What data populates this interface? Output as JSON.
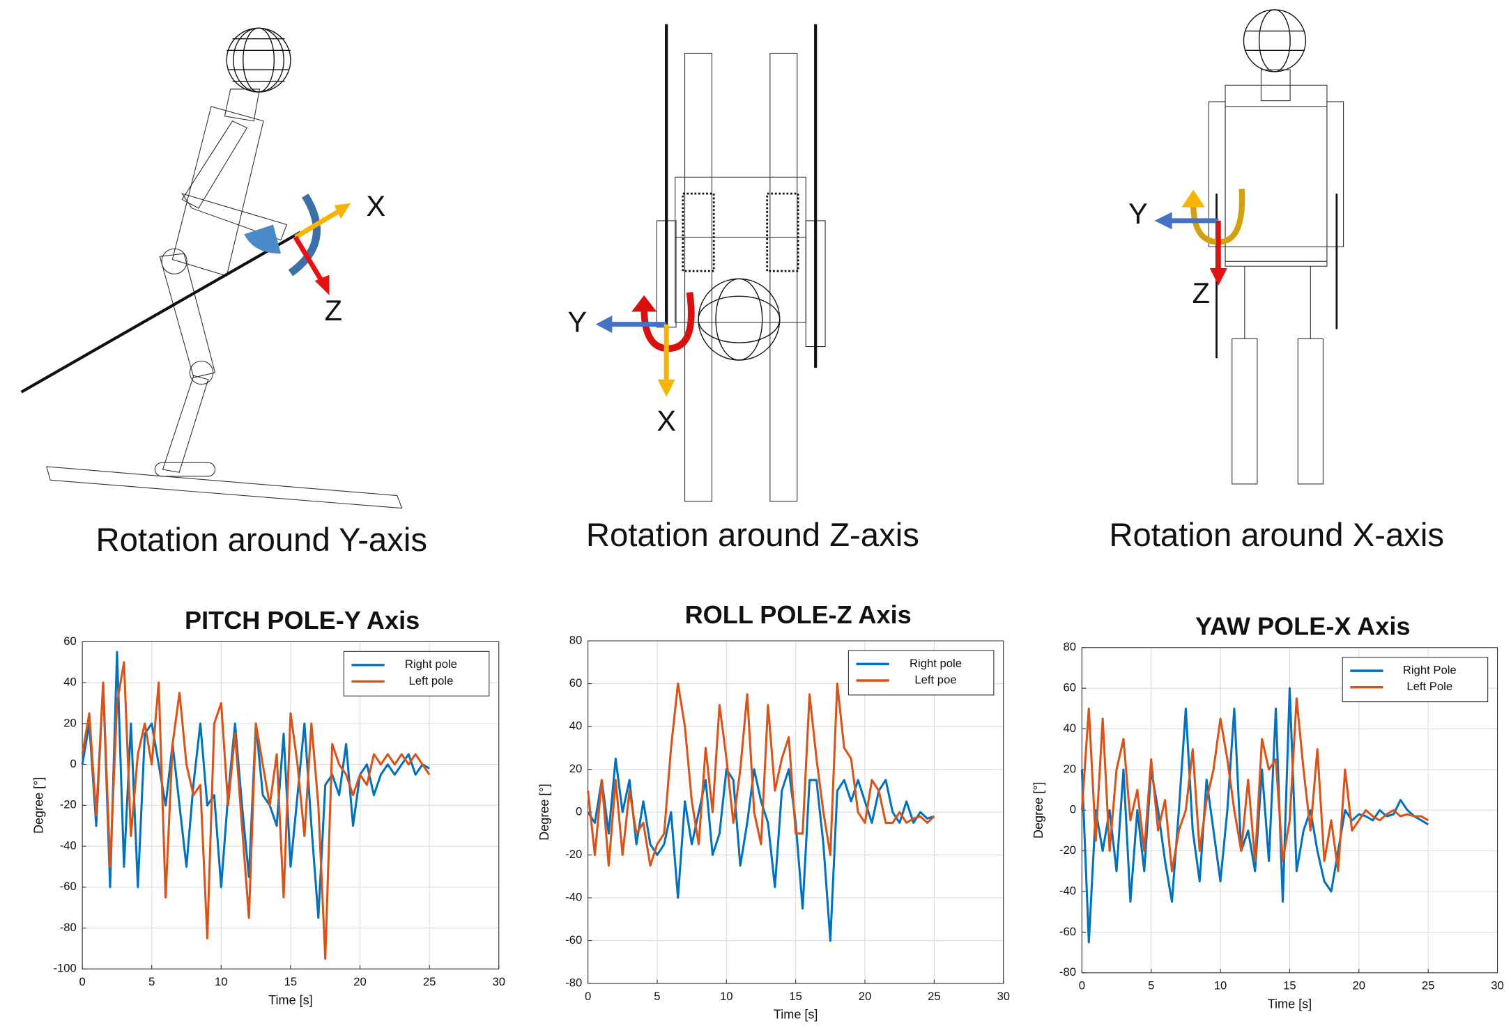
{
  "diagrams": [
    {
      "caption": "Rotation around Y-axis",
      "axes": [
        "X",
        "Z"
      ]
    },
    {
      "caption": "Rotation around Z-axis",
      "axes": [
        "Y",
        "X"
      ]
    },
    {
      "caption": "Rotation around X-axis",
      "axes": [
        "Y",
        "Z"
      ]
    }
  ],
  "chart_data": [
    {
      "type": "line",
      "title": "PITCH POLE-Y Axis",
      "xlabel": "Time [s]",
      "ylabel": "Degree [°]",
      "xlim": [
        0,
        30
      ],
      "xticks": [
        0,
        5,
        10,
        15,
        20,
        25,
        30
      ],
      "ylim": [
        -100,
        60
      ],
      "yticks": [
        -100,
        -80,
        -60,
        -40,
        -20,
        0,
        20,
        40,
        60
      ],
      "grid": true,
      "legend": "upper right",
      "x": [
        0,
        0.5,
        1,
        1.5,
        2,
        2.5,
        3,
        3.5,
        4,
        4.5,
        5,
        5.5,
        6,
        6.5,
        7,
        7.5,
        8,
        8.5,
        9,
        9.5,
        10,
        10.5,
        11,
        11.5,
        12,
        12.5,
        13,
        13.5,
        14,
        14.5,
        15,
        15.5,
        16,
        16.5,
        17,
        17.5,
        18,
        18.5,
        19,
        19.5,
        20,
        20.5,
        21,
        21.5,
        22,
        22.5,
        23,
        23.5,
        24,
        24.5,
        25
      ],
      "series": [
        {
          "name": "Right pole",
          "color": "#0072bd",
          "values": [
            0,
            20,
            -30,
            40,
            -60,
            55,
            -50,
            20,
            -60,
            15,
            20,
            0,
            -20,
            10,
            -20,
            -50,
            -10,
            20,
            -20,
            -15,
            -60,
            -15,
            20,
            -20,
            -55,
            20,
            -15,
            -20,
            -30,
            15,
            -50,
            -15,
            20,
            -30,
            -75,
            -10,
            -5,
            -15,
            10,
            -30,
            -5,
            0,
            -15,
            -5,
            0,
            -5,
            0,
            5,
            -5,
            0,
            -2
          ]
        },
        {
          "name": "Left pole",
          "color": "#d95319",
          "values": [
            5,
            25,
            -25,
            40,
            -50,
            30,
            50,
            -35,
            5,
            20,
            0,
            40,
            -65,
            10,
            35,
            0,
            -15,
            -10,
            -85,
            20,
            30,
            -20,
            15,
            -30,
            -75,
            20,
            0,
            -20,
            5,
            -65,
            25,
            0,
            -35,
            20,
            -20,
            -95,
            10,
            0,
            -5,
            -15,
            -5,
            -10,
            5,
            0,
            5,
            0,
            5,
            0,
            5,
            0,
            -5
          ]
        }
      ]
    },
    {
      "type": "line",
      "title": "ROLL POLE-Z Axis",
      "xlabel": "Time [s]",
      "ylabel": "Degree [°]",
      "xlim": [
        0,
        30
      ],
      "xticks": [
        0,
        5,
        10,
        15,
        20,
        25,
        30
      ],
      "ylim": [
        -80,
        80
      ],
      "yticks": [
        -80,
        -60,
        -40,
        -20,
        0,
        20,
        40,
        60,
        80
      ],
      "grid": true,
      "legend": "upper right",
      "x": [
        0,
        0.5,
        1,
        1.5,
        2,
        2.5,
        3,
        3.5,
        4,
        4.5,
        5,
        5.5,
        6,
        6.5,
        7,
        7.5,
        8,
        8.5,
        9,
        9.5,
        10,
        10.5,
        11,
        11.5,
        12,
        12.5,
        13,
        13.5,
        14,
        14.5,
        15,
        15.5,
        16,
        16.5,
        17,
        17.5,
        18,
        18.5,
        19,
        19.5,
        20,
        20.5,
        21,
        21.5,
        22,
        22.5,
        23,
        23.5,
        24,
        24.5,
        25
      ],
      "series": [
        {
          "name": "Right pole",
          "color": "#0072bd",
          "values": [
            0,
            -5,
            15,
            -10,
            25,
            0,
            15,
            -15,
            5,
            -15,
            -20,
            -15,
            0,
            -40,
            5,
            -15,
            0,
            15,
            -20,
            -10,
            20,
            15,
            -25,
            -5,
            20,
            5,
            -5,
            -35,
            10,
            20,
            -5,
            -45,
            15,
            15,
            -15,
            -60,
            10,
            15,
            5,
            15,
            5,
            -5,
            10,
            15,
            0,
            -5,
            5,
            -5,
            0,
            -3,
            -2
          ]
        },
        {
          "name": "Left poe",
          "color": "#d95319",
          "values": [
            10,
            -20,
            15,
            -25,
            15,
            -20,
            10,
            -10,
            -5,
            -25,
            -15,
            -10,
            30,
            60,
            40,
            5,
            -15,
            30,
            0,
            50,
            25,
            -5,
            20,
            55,
            0,
            -15,
            50,
            10,
            25,
            35,
            -10,
            -10,
            55,
            25,
            0,
            -20,
            60,
            30,
            25,
            0,
            -5,
            15,
            10,
            -5,
            -5,
            0,
            -5,
            -3,
            -2,
            -5,
            -2
          ]
        }
      ]
    },
    {
      "type": "line",
      "title": "YAW POLE-X Axis",
      "xlabel": "Time [s]",
      "ylabel": "Degree [°]",
      "xlim": [
        0,
        30
      ],
      "xticks": [
        0,
        5,
        10,
        15,
        20,
        25,
        30
      ],
      "ylim": [
        -80,
        80
      ],
      "yticks": [
        -80,
        -60,
        -40,
        -20,
        0,
        20,
        40,
        60,
        80
      ],
      "grid": true,
      "legend": "upper right",
      "x": [
        0,
        0.5,
        1,
        1.5,
        2,
        2.5,
        3,
        3.5,
        4,
        4.5,
        5,
        5.5,
        6,
        6.5,
        7,
        7.5,
        8,
        8.5,
        9,
        9.5,
        10,
        10.5,
        11,
        11.5,
        12,
        12.5,
        13,
        13.5,
        14,
        14.5,
        15,
        15.5,
        16,
        16.5,
        17,
        17.5,
        18,
        18.5,
        19,
        19.5,
        20,
        20.5,
        21,
        21.5,
        22,
        22.5,
        23,
        23.5,
        24,
        24.5,
        25
      ],
      "series": [
        {
          "name": "Right Pole",
          "color": "#0072bd",
          "values": [
            20,
            -65,
            0,
            -20,
            0,
            -30,
            20,
            -45,
            0,
            -30,
            20,
            0,
            -25,
            -45,
            0,
            50,
            -10,
            -35,
            15,
            -10,
            -35,
            0,
            50,
            -20,
            -10,
            -30,
            20,
            -25,
            50,
            -45,
            60,
            -30,
            -10,
            0,
            -20,
            -35,
            -40,
            -20,
            0,
            -5,
            -2,
            -3,
            -5,
            0,
            -3,
            -2,
            5,
            0,
            -3,
            -5,
            -7
          ]
        },
        {
          "name": "Left Pole",
          "color": "#d95319",
          "values": [
            0,
            50,
            -15,
            45,
            -20,
            20,
            35,
            -5,
            10,
            -20,
            25,
            -10,
            5,
            -30,
            -10,
            0,
            30,
            -20,
            5,
            20,
            45,
            25,
            0,
            -20,
            15,
            -25,
            35,
            20,
            25,
            -25,
            -5,
            55,
            20,
            -10,
            30,
            -25,
            -5,
            -30,
            20,
            -10,
            -5,
            0,
            -3,
            -5,
            -2,
            0,
            -3,
            -2,
            -3,
            -3,
            -5
          ]
        }
      ]
    }
  ]
}
